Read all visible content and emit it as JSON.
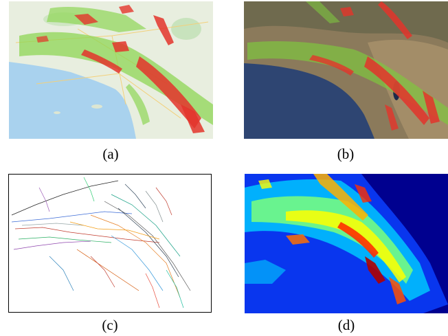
{
  "captions": {
    "a": "(a)",
    "b": "(b)",
    "c": "(c)",
    "d": "(d)"
  },
  "panels": {
    "a": {
      "content": "street-map-with-hotspot-overlay"
    },
    "b": {
      "content": "satellite-map-with-hotspot-overlay"
    },
    "c": {
      "content": "colored-fault-line-traces"
    },
    "d": {
      "content": "jet-colormap-density-grid"
    }
  },
  "colors": {
    "map_land": "#e6eddc",
    "ocean": "#a9d1ec",
    "satellite_ocean": "#2e4572",
    "satellite_land": "#8b7a5b",
    "hotspot_red": "#e3342b",
    "hotspot_green": "#8bd14d",
    "jet_low": "#00008f",
    "jet_high": "#8b0000"
  }
}
